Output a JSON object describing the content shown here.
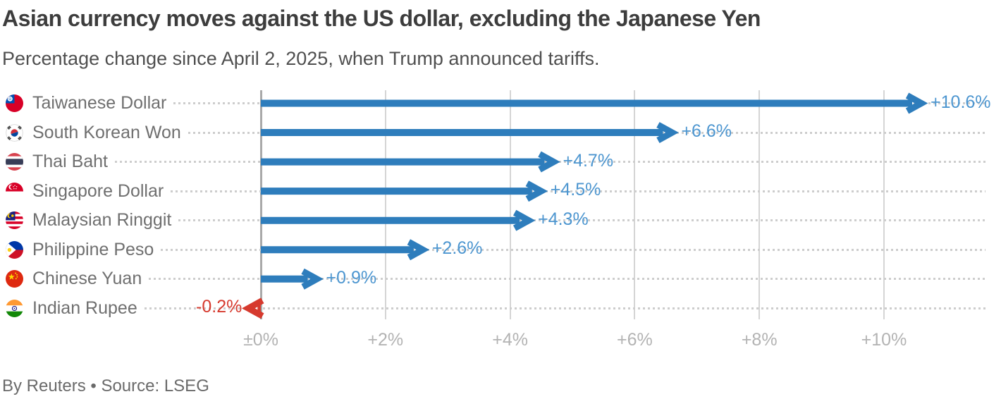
{
  "footer": {
    "credit": "By Reuters • Source: LSEG"
  },
  "colors": {
    "bar_positive": "#2e7dbc",
    "bar_negative": "#d63a2e",
    "value_label_positive": "#4d96d0",
    "value_label_negative": "#d63a2e",
    "gridline": "#d5d5d5",
    "zero_axis": "#a9a9a9",
    "leader_dots": "#cdcdcd",
    "title_text": "#3d3d3d",
    "subtitle_text": "#4f4f4f",
    "row_label_text": "#6f6f6f",
    "tick_text": "#b3b3b3",
    "footer_text": "#6a6a6a"
  },
  "chart_data": {
    "type": "bar",
    "orientation": "horizontal-arrows",
    "title": "Asian currency moves against the US dollar, excluding the Japanese Yen",
    "subtitle": "Percentage change since April 2, 2025, when Trump announced tariffs.",
    "xlabel": "",
    "ylabel": "",
    "xlim": [
      -1.2,
      11.6
    ],
    "grid": "vertical",
    "x_ticks": {
      "values": [
        0,
        2,
        4,
        6,
        8,
        10
      ],
      "labels": [
        "±0%",
        "+2%",
        "+4%",
        "+6%",
        "+8%",
        "+10%"
      ]
    },
    "categories": [
      "Taiwanese Dollar",
      "South Korean Won",
      "Thai Baht",
      "Singapore Dollar",
      "Malaysian Ringgit",
      "Philippine Peso",
      "Chinese Yuan",
      "Indian Rupee"
    ],
    "values": [
      10.6,
      6.6,
      4.7,
      4.5,
      4.3,
      2.6,
      0.9,
      -0.2
    ],
    "rows": [
      {
        "label": "Taiwanese Dollar",
        "flag": "flag-taiwan-icon",
        "value": 10.6,
        "display": "+10.6%"
      },
      {
        "label": "South Korean Won",
        "flag": "flag-south-korea-icon",
        "value": 6.6,
        "display": "+6.6%"
      },
      {
        "label": "Thai Baht",
        "flag": "flag-thailand-icon",
        "value": 4.7,
        "display": "+4.7%"
      },
      {
        "label": "Singapore Dollar",
        "flag": "flag-singapore-icon",
        "value": 4.5,
        "display": "+4.5%"
      },
      {
        "label": "Malaysian Ringgit",
        "flag": "flag-malaysia-icon",
        "value": 4.3,
        "display": "+4.3%"
      },
      {
        "label": "Philippine Peso",
        "flag": "flag-philippines-icon",
        "value": 2.6,
        "display": "+2.6%"
      },
      {
        "label": "Chinese Yuan",
        "flag": "flag-china-icon",
        "value": 0.9,
        "display": "+0.9%"
      },
      {
        "label": "Indian Rupee",
        "flag": "flag-india-icon",
        "value": -0.2,
        "display": "-0.2%"
      }
    ]
  }
}
